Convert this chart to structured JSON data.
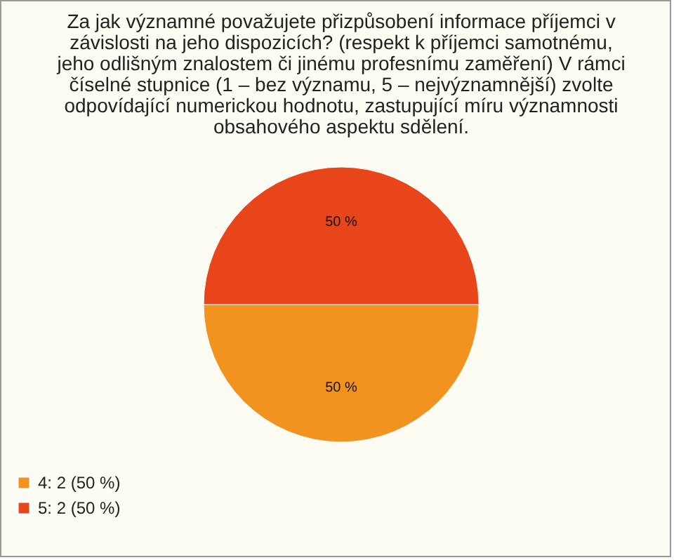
{
  "chart_data": {
    "type": "pie",
    "title": "Za jak významné považujete přizpůsobení informace příjemci v závislosti na jeho dispozicích? (respekt k příjemci samotnému, jeho odlišným znalostem či jinému profesnímu zaměření) V rámci číselné stupnice (1 – bez významu, 5 – nejvýznamnější) zvolte odpovídající numerickou hodnotu, zastupující míru významnosti obsahového aspektu sdělení.",
    "categories": [
      "4: 2 (50 %)",
      "5: 2 (50 %)"
    ],
    "values": [
      50,
      50
    ],
    "colors": [
      "#f3931f",
      "#e8461a"
    ],
    "value_labels": [
      "50 %",
      "50 %"
    ],
    "legend": "bottom left"
  }
}
